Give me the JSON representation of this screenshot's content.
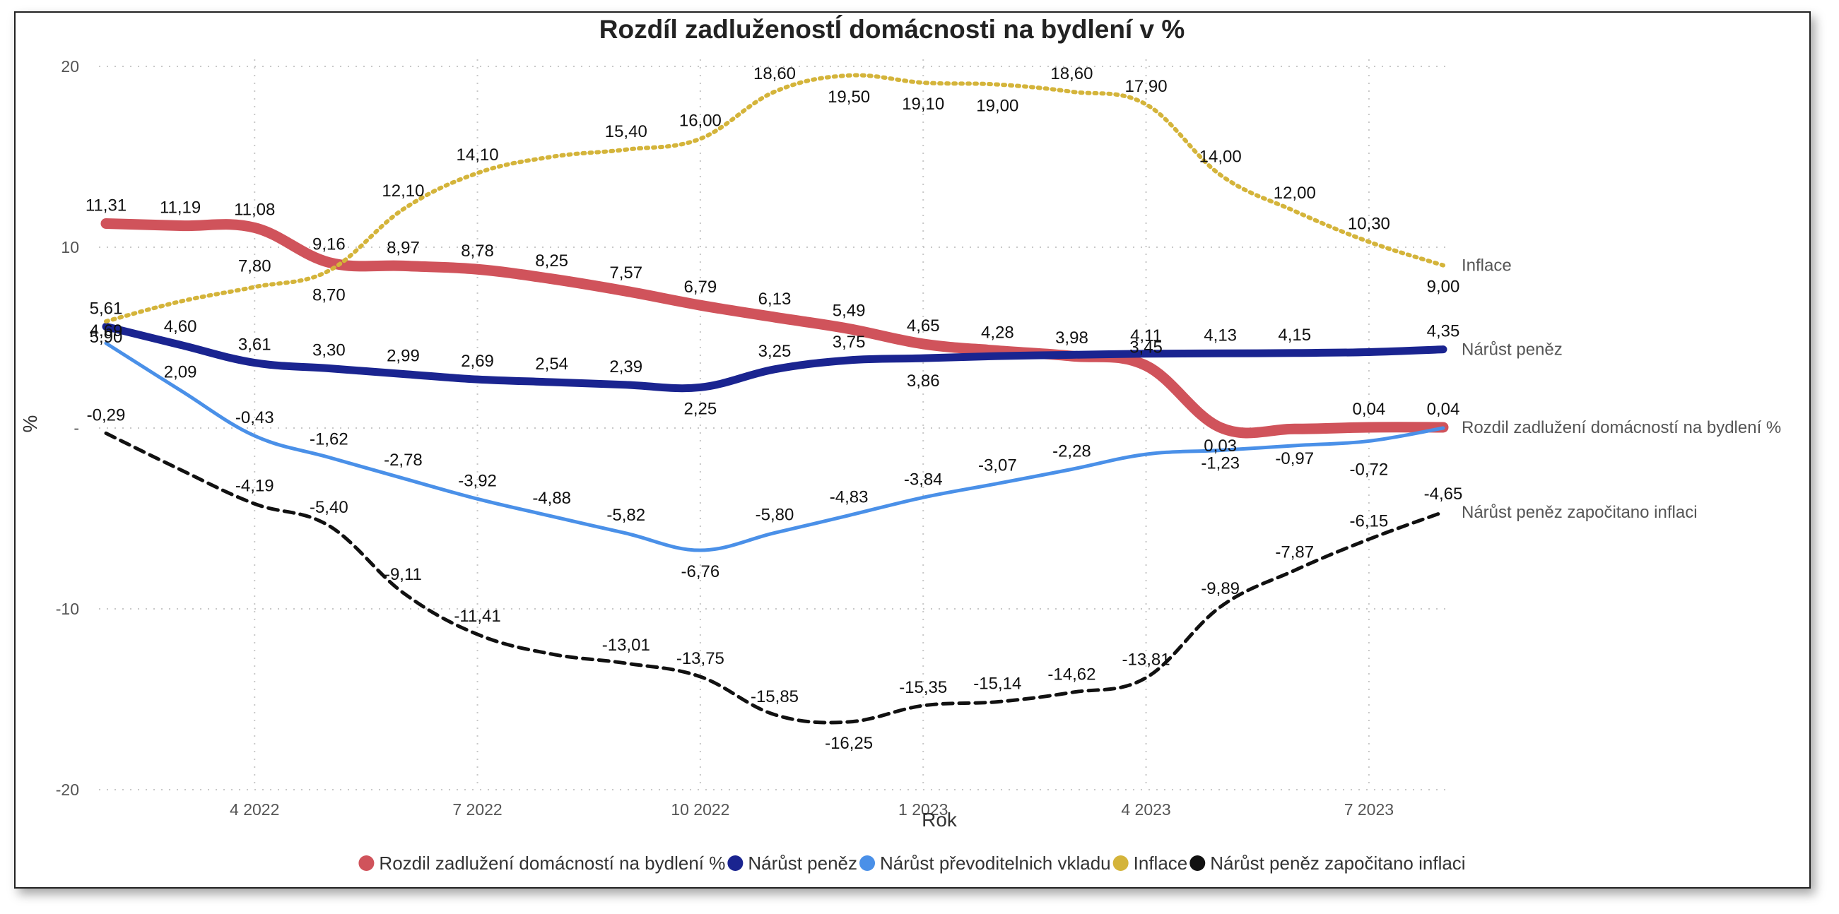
{
  "chart_data": {
    "type": "line",
    "title": "Rozdíl zadluženostÍ domácnosti na bydlení v %",
    "xlabel": "Rok",
    "ylabel": "%",
    "ylim": [
      -20,
      20
    ],
    "y_ticks": [
      {
        "value": 20,
        "label": "20"
      },
      {
        "value": 10,
        "label": "10"
      },
      {
        "value": 0,
        "label": "-"
      },
      {
        "value": -10,
        "label": "-10"
      },
      {
        "value": -20,
        "label": "-20"
      }
    ],
    "x": [
      1,
      2,
      3,
      4,
      5,
      6,
      7,
      8,
      9,
      10,
      11,
      12,
      13,
      14,
      15,
      16,
      17,
      18,
      19
    ],
    "x_ticks": [
      {
        "x": 3,
        "label": "4 2022"
      },
      {
        "x": 6,
        "label": "7 2022"
      },
      {
        "x": 9,
        "label": "10 2022"
      },
      {
        "x": 12,
        "label": "1 2023"
      },
      {
        "x": 15,
        "label": "4 2023"
      },
      {
        "x": 18,
        "label": "7 2023"
      }
    ],
    "grid": true,
    "legend_position": "bottom",
    "series": [
      {
        "name": "Rozdil zadlužení domácností na bydlení %",
        "end_label": "Rozdil zadlužení domácností na bydlení %",
        "color": "#d0535b",
        "width": 15,
        "dash": "",
        "values": [
          11.31,
          11.19,
          11.08,
          9.16,
          8.97,
          8.78,
          8.25,
          7.57,
          6.79,
          6.13,
          5.49,
          4.65,
          4.28,
          3.98,
          3.45,
          0.03,
          -0.05,
          0.04,
          0.04
        ],
        "labels": [
          "11,31",
          "11,19",
          "11,08",
          "9,16",
          "8,97",
          "8,78",
          "8,25",
          "7,57",
          "6,79",
          "6,13",
          "5,49",
          "4,65",
          "4,28",
          "3,98",
          "3,45",
          "0,03",
          "",
          "0,04",
          "0,04"
        ],
        "label_dy": [
          -18,
          -18,
          -18,
          -18,
          -18,
          -18,
          -18,
          -18,
          -18,
          -18,
          -18,
          -18,
          -18,
          -18,
          -18,
          34,
          -18,
          -18,
          -18
        ]
      },
      {
        "name": "Nárůst peněz",
        "end_label": "Nárůst peněz",
        "color": "#1a2490",
        "width": 11,
        "dash": "",
        "values": [
          5.61,
          4.6,
          3.61,
          3.3,
          2.99,
          2.69,
          2.54,
          2.39,
          2.25,
          3.25,
          3.75,
          3.86,
          3.98,
          4.05,
          4.11,
          4.13,
          4.15,
          4.2,
          4.35
        ],
        "labels": [
          "5,61",
          "4,60",
          "3,61",
          "3,30",
          "2,99",
          "2,69",
          "2,54",
          "2,39",
          "2,25",
          "3,25",
          "3,75",
          "3,86",
          "",
          "",
          "4,11",
          "4,13",
          "4,15",
          "",
          "4,35"
        ],
        "label_dy": [
          -18,
          -18,
          -18,
          -18,
          -18,
          -18,
          -18,
          -18,
          38,
          -18,
          -18,
          40,
          -18,
          -18,
          -18,
          -18,
          -18,
          -18,
          -18
        ]
      },
      {
        "name": "Nárůst převoditelnich vkladu",
        "end_label": "",
        "color": "#4a90e8",
        "width": 5,
        "dash": "",
        "values": [
          4.69,
          2.09,
          -0.43,
          -1.62,
          -2.78,
          -3.92,
          -4.88,
          -5.82,
          -6.76,
          -5.8,
          -4.83,
          -3.84,
          -3.07,
          -2.28,
          -1.45,
          -1.23,
          -0.97,
          -0.72,
          0.0
        ],
        "labels": [
          "4,69",
          "2,09",
          "-0,43",
          "-1,62",
          "-2,78",
          "-3,92",
          "-4,88",
          "-5,82",
          "-6,76",
          "-5,80",
          "-4,83",
          "-3,84",
          "-3,07",
          "-2,28",
          "",
          "-1,23",
          "-0,97",
          "-0,72",
          ""
        ],
        "label_dy": [
          -10,
          -18,
          -18,
          -18,
          -18,
          -18,
          -18,
          -18,
          38,
          -18,
          -18,
          -18,
          -18,
          -18,
          -18,
          26,
          26,
          48,
          -18
        ]
      },
      {
        "name": "Inflace",
        "end_label": "Inflace",
        "color": "#d4b43a",
        "width": 6,
        "dash": "3 7",
        "values": [
          5.9,
          7.0,
          7.8,
          8.7,
          12.1,
          14.1,
          15.0,
          15.4,
          16.0,
          18.6,
          19.5,
          19.1,
          19.0,
          18.6,
          17.9,
          14.0,
          12.0,
          10.3,
          9.0
        ],
        "labels": [
          "5,90",
          "",
          "7,80",
          "8,70",
          "12,10",
          "14,10",
          "",
          "15,40",
          "16,00",
          "18,60",
          "19,50",
          "19,10",
          "19,00",
          "18,60",
          "17,90",
          "14,00",
          "12,00",
          "10,30",
          "9,00"
        ],
        "label_dy": [
          30,
          -18,
          -22,
          42,
          -18,
          -18,
          -18,
          -18,
          -18,
          -18,
          38,
          38,
          38,
          -18,
          -18,
          -18,
          -18,
          -18,
          38
        ]
      },
      {
        "name": "Nárůst peněz započitano inflaci",
        "end_label": "Nárůst peněz započitano inflaci",
        "color": "#111111",
        "width": 5,
        "dash": "14 9",
        "values": [
          -0.29,
          -2.3,
          -4.19,
          -5.4,
          -9.11,
          -11.41,
          -12.5,
          -13.01,
          -13.75,
          -15.85,
          -16.25,
          -15.35,
          -15.14,
          -14.62,
          -13.81,
          -9.89,
          -7.87,
          -6.15,
          -4.65
        ],
        "labels": [
          "-0,29",
          "",
          "-4,19",
          "-5,40",
          "-9,11",
          "-11,41",
          "",
          "-13,01",
          "-13,75",
          "-15,85",
          "-16,25",
          "-15,35",
          "-15,14",
          "-14,62",
          "-13,81",
          "-9,89",
          "-7,87",
          "-6,15",
          "-4,65"
        ],
        "label_dy": [
          -18,
          -18,
          -18,
          -18,
          -18,
          -18,
          -18,
          -18,
          -18,
          -18,
          38,
          -18,
          -18,
          -18,
          -18,
          -18,
          -18,
          -18,
          -18
        ]
      }
    ]
  }
}
